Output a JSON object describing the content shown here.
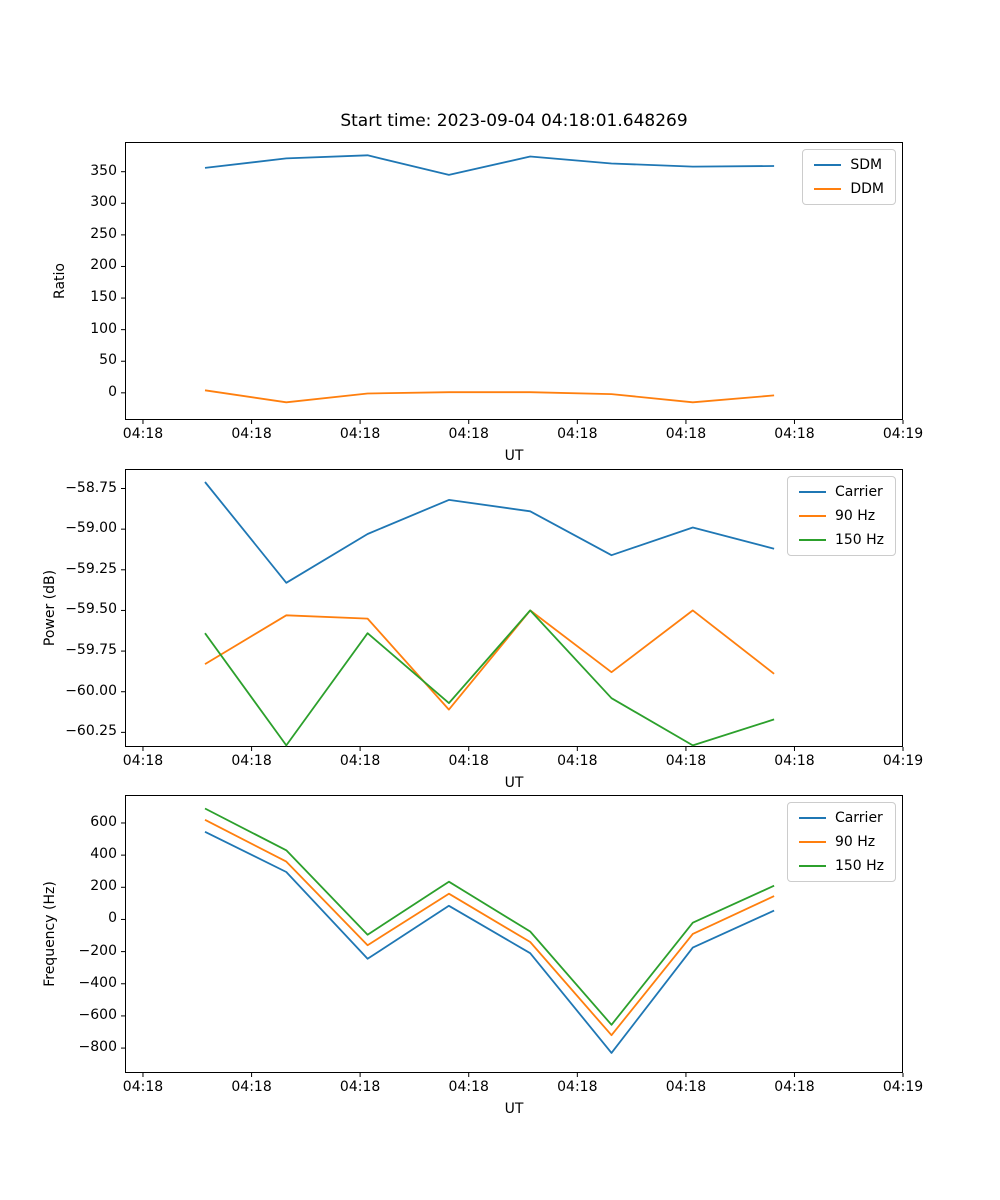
{
  "figure": {
    "background_color": "#ffffff",
    "text_color": "#000000",
    "axes_edge_color": "#000000",
    "legend_border_color": "#cccccc"
  },
  "chart_data": [
    {
      "type": "line",
      "title": "Start time: 2023-09-04 04:18:01.648269",
      "xlabel": "UT",
      "ylabel": "Ratio",
      "grid": false,
      "legend_loc": "upper right",
      "ylim": [
        -43,
        397
      ],
      "y_ticks": [
        0,
        50,
        100,
        150,
        200,
        250,
        300,
        350
      ],
      "y_tick_labels": [
        "0",
        "50",
        "100",
        "150",
        "200",
        "250",
        "300",
        "350"
      ],
      "x_tick_labels": [
        "04:18",
        "04:18",
        "04:18",
        "04:18",
        "04:18",
        "04:18",
        "04:18",
        "04:19"
      ],
      "x_tick_pos": [
        0.0231,
        0.1627,
        0.3022,
        0.4418,
        0.5814,
        0.721,
        0.8605,
        1.0
      ],
      "x_pos": [
        0.1028,
        0.2073,
        0.3118,
        0.4163,
        0.5208,
        0.6253,
        0.7298,
        0.8343
      ],
      "series": [
        {
          "name": "SDM",
          "color": "#1f77b4",
          "values": [
            356,
            371,
            376,
            345,
            374,
            363,
            358,
            359
          ]
        },
        {
          "name": "DDM",
          "color": "#ff7f0e",
          "values": [
            4,
            -15,
            -1,
            1,
            1,
            -2,
            -15,
            -4
          ]
        }
      ]
    },
    {
      "type": "line",
      "title": "",
      "xlabel": "UT",
      "ylabel": "Power (dB)",
      "grid": false,
      "legend_loc": "upper right",
      "ylim": [
        -60.34,
        -58.63
      ],
      "y_ticks": [
        -58.75,
        -59.0,
        -59.25,
        -59.5,
        -59.75,
        -60.0,
        -60.25
      ],
      "y_tick_labels": [
        "−58.75",
        "−59.00",
        "−59.25",
        "−59.50",
        "−59.75",
        "−60.00",
        "−60.25"
      ],
      "x_tick_labels": [
        "04:18",
        "04:18",
        "04:18",
        "04:18",
        "04:18",
        "04:18",
        "04:18",
        "04:19"
      ],
      "x_tick_pos": [
        0.0231,
        0.1627,
        0.3022,
        0.4418,
        0.5814,
        0.721,
        0.8605,
        1.0
      ],
      "x_pos": [
        0.1028,
        0.2073,
        0.3118,
        0.4163,
        0.5208,
        0.6253,
        0.7298,
        0.8343
      ],
      "series": [
        {
          "name": "Carrier",
          "color": "#1f77b4",
          "values": [
            -58.71,
            -59.33,
            -59.03,
            -58.82,
            -58.89,
            -59.16,
            -58.99,
            -59.12
          ]
        },
        {
          "name": "90 Hz",
          "color": "#ff7f0e",
          "values": [
            -59.83,
            -59.53,
            -59.55,
            -60.11,
            -59.5,
            -59.88,
            -59.5,
            -59.89
          ]
        },
        {
          "name": "150 Hz",
          "color": "#2ca02c",
          "values": [
            -59.64,
            -60.33,
            -59.64,
            -60.07,
            -59.5,
            -60.04,
            -60.33,
            -60.17
          ]
        }
      ]
    },
    {
      "type": "line",
      "title": "",
      "xlabel": "UT",
      "ylabel": "Frequency (Hz)",
      "grid": false,
      "legend_loc": "upper right",
      "ylim": [
        -955,
        774
      ],
      "y_ticks": [
        -800,
        -600,
        -400,
        -200,
        0,
        200,
        400,
        600
      ],
      "y_tick_labels": [
        "−800",
        "−600",
        "−400",
        "−200",
        "0",
        "200",
        "400",
        "600"
      ],
      "x_tick_labels": [
        "04:18",
        "04:18",
        "04:18",
        "04:18",
        "04:18",
        "04:18",
        "04:18",
        "04:19"
      ],
      "x_tick_pos": [
        0.0231,
        0.1627,
        0.3022,
        0.4418,
        0.5814,
        0.721,
        0.8605,
        1.0
      ],
      "x_pos": [
        0.1028,
        0.2073,
        0.3118,
        0.4163,
        0.5208,
        0.6253,
        0.7298,
        0.8343
      ],
      "series": [
        {
          "name": "Carrier",
          "color": "#1f77b4",
          "values": [
            545,
            295,
            -245,
            85,
            -210,
            -830,
            -175,
            55
          ]
        },
        {
          "name": "90 Hz",
          "color": "#ff7f0e",
          "values": [
            620,
            360,
            -160,
            160,
            -140,
            -720,
            -90,
            145
          ]
        },
        {
          "name": "150 Hz",
          "color": "#2ca02c",
          "values": [
            690,
            430,
            -95,
            235,
            -75,
            -655,
            -20,
            210
          ]
        }
      ]
    }
  ]
}
